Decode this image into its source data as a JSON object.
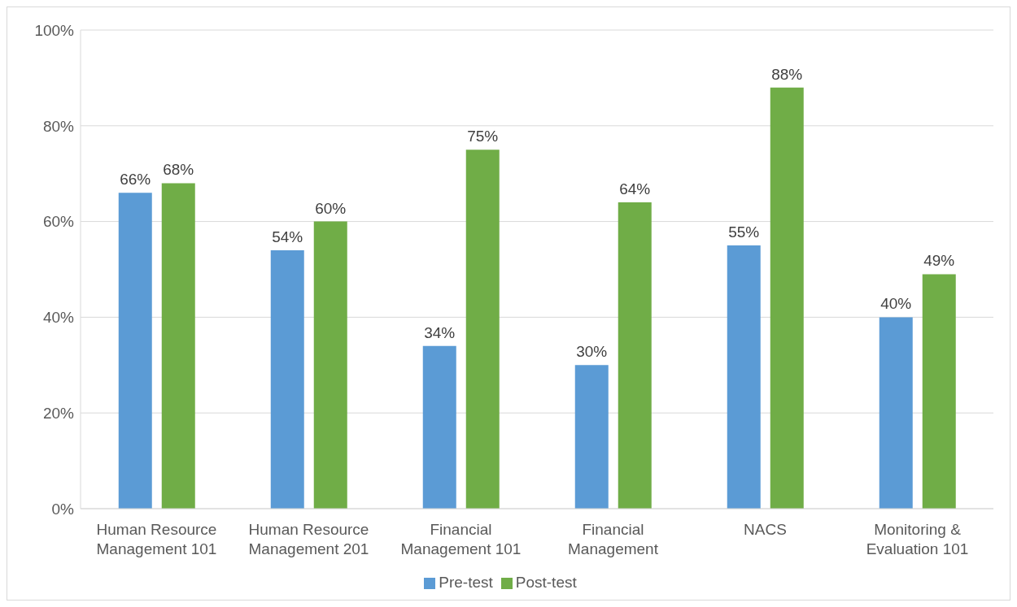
{
  "chart_data": {
    "type": "bar",
    "categories": [
      "Human Resource Management 101",
      "Human Resource Management 201",
      "Financial Management 101",
      "Financial Management",
      "NACS",
      "Monitoring & Evaluation 101"
    ],
    "series": [
      {
        "name": "Pre-test",
        "color": "#5b9bd5",
        "values": [
          66,
          54,
          34,
          30,
          55,
          40
        ],
        "value_labels": [
          "66%",
          "54%",
          "34%",
          "30%",
          "55%",
          "40%"
        ]
      },
      {
        "name": "Post-test",
        "color": "#70ad47",
        "values": [
          68,
          60,
          75,
          64,
          88,
          49
        ],
        "value_labels": [
          "68%",
          "60%",
          "75%",
          "64%",
          "88%",
          "49%"
        ]
      }
    ],
    "ylim": [
      0,
      100
    ],
    "yticks": [
      {
        "value": 0,
        "label": "0%"
      },
      {
        "value": 20,
        "label": "20%"
      },
      {
        "value": 40,
        "label": "40%"
      },
      {
        "value": 60,
        "label": "60%"
      },
      {
        "value": 80,
        "label": "80%"
      },
      {
        "value": 100,
        "label": "100%"
      }
    ],
    "grid": "y",
    "legend": "bottom"
  }
}
